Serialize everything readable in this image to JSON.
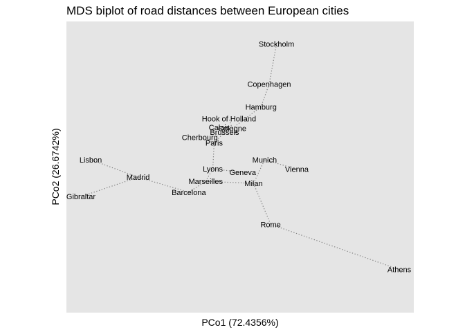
{
  "chart_data": {
    "type": "scatter",
    "title": "MDS biplot of road distances between European cities",
    "xlabel": "PCo1 (72.4356%)",
    "ylabel": "PCo2 (26.6742%)",
    "grid": false,
    "legend": "none",
    "xlim": [
      -2310,
      2590
    ],
    "ylim": [
      -1620,
      2000
    ],
    "points": [
      {
        "label": "Stockholm",
        "x": 700,
        "y": 1880
      },
      {
        "label": "Copenhagen",
        "x": 587,
        "y": 1331
      },
      {
        "label": "Hamburg",
        "x": 462,
        "y": 1021
      },
      {
        "label": "Hook of Holland",
        "x": -31,
        "y": 857
      },
      {
        "label": "Calais",
        "x": -180,
        "y": 741
      },
      {
        "label": "Cologne",
        "x": 18,
        "y": 724
      },
      {
        "label": "Brussels",
        "x": -100,
        "y": 672
      },
      {
        "label": "Cherbourg",
        "x": -480,
        "y": 604
      },
      {
        "label": "Paris",
        "x": -260,
        "y": 526
      },
      {
        "label": "Lisbon",
        "x": -2160,
        "y": 295
      },
      {
        "label": "Madrid",
        "x": -1430,
        "y": 55
      },
      {
        "label": "Gibraltar",
        "x": -2310,
        "y": -210
      },
      {
        "label": "Barcelona",
        "x": -650,
        "y": -150
      },
      {
        "label": "Lyons",
        "x": -280,
        "y": 170
      },
      {
        "label": "Geneva",
        "x": 180,
        "y": 122
      },
      {
        "label": "Marseilles",
        "x": -390,
        "y": 0
      },
      {
        "label": "Milan",
        "x": 347,
        "y": -30
      },
      {
        "label": "Munich",
        "x": 517,
        "y": 295
      },
      {
        "label": "Vienna",
        "x": 1013,
        "y": 165
      },
      {
        "label": "Rome",
        "x": 610,
        "y": -590
      },
      {
        "label": "Athens",
        "x": 2590,
        "y": -1210
      }
    ],
    "edges": [
      [
        "Stockholm",
        "Copenhagen"
      ],
      [
        "Copenhagen",
        "Hamburg"
      ],
      [
        "Hamburg",
        "Cologne"
      ],
      [
        "Cologne",
        "Hook of Holland"
      ],
      [
        "Cologne",
        "Brussels"
      ],
      [
        "Brussels",
        "Calais"
      ],
      [
        "Brussels",
        "Paris"
      ],
      [
        "Paris",
        "Cherbourg"
      ],
      [
        "Paris",
        "Lyons"
      ],
      [
        "Lyons",
        "Geneva"
      ],
      [
        "Lyons",
        "Marseilles"
      ],
      [
        "Marseilles",
        "Barcelona"
      ],
      [
        "Marseilles",
        "Milan"
      ],
      [
        "Barcelona",
        "Madrid"
      ],
      [
        "Madrid",
        "Lisbon"
      ],
      [
        "Madrid",
        "Gibraltar"
      ],
      [
        "Milan",
        "Munich"
      ],
      [
        "Milan",
        "Rome"
      ],
      [
        "Munich",
        "Vienna"
      ],
      [
        "Rome",
        "Athens"
      ]
    ]
  }
}
